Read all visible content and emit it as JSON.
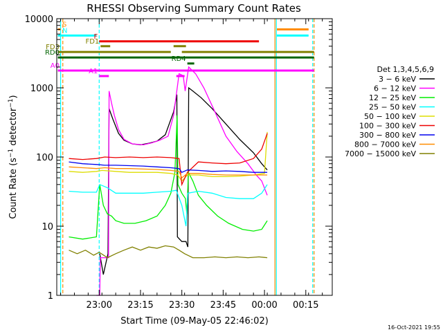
{
  "chart_data": {
    "type": "line",
    "title": "RHESSI Observing Summary Count Rates",
    "xlabel": "Start Time (09-May-05 22:46:02)",
    "ylabel": "Count Rate (s⁻¹ detector⁻¹)",
    "ylabel_main": "Count Rate (s",
    "ylabel_sup1": "−1",
    "ylabel_mid": " detector",
    "ylabel_sup2": "−1",
    "ylabel_end": ")",
    "y_scale": "log",
    "ylim": [
      1,
      10000
    ],
    "xlim": [
      "22:46",
      "00:26"
    ],
    "x_ticks": [
      {
        "t": "23:00",
        "m": 14
      },
      {
        "t": "23:15",
        "m": 29
      },
      {
        "t": "23:30",
        "m": 44
      },
      {
        "t": "23:45",
        "m": 59
      },
      {
        "t": "00:00",
        "m": 74
      },
      {
        "t": "00:15",
        "m": 89
      }
    ],
    "y_ticks": [
      {
        "label": "1",
        "v": 1
      },
      {
        "label": "10",
        "v": 10
      },
      {
        "label": "100",
        "v": 100
      },
      {
        "label": "1000",
        "v": 1000
      },
      {
        "label": "10000",
        "v": 10000
      }
    ],
    "legend": {
      "title": "Det 1,3,4,5,6,9",
      "placement": "right",
      "entries": [
        {
          "label": "3 − 6 keV",
          "color": "#000000"
        },
        {
          "label": "6 − 12 keV",
          "color": "#ff00ff"
        },
        {
          "label": "12 − 25 keV",
          "color": "#00ee00"
        },
        {
          "label": "25 − 50 keV",
          "color": "#00ffff"
        },
        {
          "label": "50 − 100 keV",
          "color": "#dddd00"
        },
        {
          "label": "100 − 300 keV",
          "color": "#ee0000"
        },
        {
          "label": "300 − 800 keV",
          "color": "#0000ee"
        },
        {
          "label": "800 − 7000 keV",
          "color": "#ff8c00"
        },
        {
          "label": "7000 − 15000 keV",
          "color": "#808000"
        }
      ]
    },
    "flag_bars": [
      {
        "label": "S",
        "color": "#ff8c00",
        "y": 7000,
        "segments": [
          [
            -1,
            0
          ],
          [
            78.5,
            90
          ]
        ]
      },
      {
        "label": "N",
        "color": "#00ffff",
        "y": 5700,
        "segments": [
          [
            -1,
            13
          ],
          [
            78.5,
            90
          ]
        ]
      },
      {
        "label": "F",
        "color": "#ee0000",
        "y": 4700,
        "segments": [
          [
            14,
            72
          ]
        ]
      },
      {
        "label": "FD1",
        "color": "#808000",
        "y": 4000,
        "segments": [
          [
            14.5,
            18
          ],
          [
            41,
            45.5
          ]
        ]
      },
      {
        "label": "FD3",
        "color": "#808000",
        "y": 3300,
        "segments": [
          [
            -1,
            40
          ],
          [
            44,
            92
          ]
        ]
      },
      {
        "label": "RD0",
        "color": "#006400",
        "y": 2750,
        "segments": [
          [
            -1,
            92
          ]
        ]
      },
      {
        "label": "RD4",
        "color": "#006400",
        "y": 2250,
        "segments": [
          [
            46,
            48.5
          ]
        ]
      },
      {
        "label": "A0",
        "color": "#ff00ff",
        "y": 1780,
        "segments": [
          [
            -1,
            92
          ]
        ]
      },
      {
        "label": "A1",
        "color": "#ff00ff",
        "y": 1480,
        "segments": [
          [
            14,
            17.5
          ],
          [
            42,
            45
          ]
        ]
      }
    ],
    "vlines": [
      {
        "m": 0.8,
        "color": "#ff8c00",
        "style": "dashed"
      },
      {
        "m": 0,
        "color": "#00ffff",
        "style": "solid"
      },
      {
        "m": 14,
        "color": "#00ffff",
        "style": "dashed"
      },
      {
        "m": 77.8,
        "color": "#ff8c00",
        "style": "solid"
      },
      {
        "m": 78.3,
        "color": "#00ffff",
        "style": "solid"
      },
      {
        "m": 91.5,
        "color": "#00ffff",
        "style": "dashed"
      },
      {
        "m": 92,
        "color": "#ff8c00",
        "style": "dashed"
      }
    ],
    "series": [
      {
        "name": "3 − 6 keV",
        "color": "#000000",
        "points": [
          [
            14.2,
            4
          ],
          [
            15.5,
            2
          ],
          [
            16.5,
            3
          ],
          [
            17.2,
            4
          ],
          [
            17.6,
            500
          ],
          [
            19,
            350
          ],
          [
            21,
            220
          ],
          [
            23,
            175
          ],
          [
            26,
            155
          ],
          [
            29,
            150
          ],
          [
            32,
            158
          ],
          [
            35,
            170
          ],
          [
            38,
            210
          ],
          [
            41,
            450
          ],
          [
            42.2,
            800
          ],
          [
            42.4,
            7
          ],
          [
            44,
            6
          ],
          [
            45.5,
            6
          ],
          [
            46.2,
            5
          ],
          [
            46.5,
            1000
          ],
          [
            48,
            900
          ],
          [
            51,
            720
          ],
          [
            55,
            500
          ],
          [
            60,
            300
          ],
          [
            65,
            180
          ],
          [
            70,
            115
          ],
          [
            73,
            80
          ],
          [
            75,
            65
          ]
        ]
      },
      {
        "name": "6 − 12 keV",
        "color": "#ff00ff",
        "points": [
          [
            13,
            1
          ],
          [
            14.2,
            1
          ],
          [
            14.4,
            3.5
          ],
          [
            16.5,
            3.5
          ],
          [
            17.4,
            3.5
          ],
          [
            17.6,
            900
          ],
          [
            18.5,
            600
          ],
          [
            19.5,
            400
          ],
          [
            21,
            250
          ],
          [
            23,
            180
          ],
          [
            26,
            155
          ],
          [
            30,
            150
          ],
          [
            33,
            160
          ],
          [
            36,
            175
          ],
          [
            39,
            200
          ],
          [
            41,
            400
          ],
          [
            43,
            1600
          ],
          [
            44.5,
            1500
          ],
          [
            45.2,
            900
          ],
          [
            46.5,
            2000
          ],
          [
            49,
            1600
          ],
          [
            52,
            1000
          ],
          [
            56,
            450
          ],
          [
            60,
            200
          ],
          [
            64,
            120
          ],
          [
            68,
            80
          ],
          [
            71,
            55
          ],
          [
            73,
            45
          ],
          [
            75,
            28
          ]
        ]
      },
      {
        "name": "12 − 25 keV",
        "color": "#00ee00",
        "points": [
          [
            3,
            7
          ],
          [
            8,
            6.5
          ],
          [
            13,
            7
          ],
          [
            14.2,
            40
          ],
          [
            15.5,
            20
          ],
          [
            17,
            15
          ],
          [
            18.5,
            14
          ],
          [
            20,
            12
          ],
          [
            23,
            11
          ],
          [
            27,
            11
          ],
          [
            31,
            12
          ],
          [
            35,
            14
          ],
          [
            38,
            20
          ],
          [
            40,
            30
          ],
          [
            41.5,
            60
          ],
          [
            42.3,
            400
          ],
          [
            42.6,
            40
          ],
          [
            44,
            30
          ],
          [
            45.3,
            25
          ],
          [
            45.8,
            15
          ],
          [
            46.4,
            60
          ],
          [
            48,
            45
          ],
          [
            50,
            28
          ],
          [
            53,
            20
          ],
          [
            57,
            14
          ],
          [
            61,
            11
          ],
          [
            66,
            9
          ],
          [
            70,
            8.5
          ],
          [
            73,
            9
          ],
          [
            75,
            12
          ]
        ]
      },
      {
        "name": "25 − 50 keV",
        "color": "#00ffff",
        "points": [
          [
            3,
            32
          ],
          [
            8,
            31
          ],
          [
            13,
            31
          ],
          [
            14.2,
            40
          ],
          [
            17,
            36
          ],
          [
            20,
            30
          ],
          [
            25,
            30
          ],
          [
            30,
            30
          ],
          [
            35,
            31
          ],
          [
            40,
            32
          ],
          [
            42,
            33
          ],
          [
            44,
            20
          ],
          [
            45.5,
            10
          ],
          [
            46.2,
            30
          ],
          [
            50,
            32
          ],
          [
            55,
            30
          ],
          [
            60,
            26
          ],
          [
            65,
            25
          ],
          [
            70,
            25
          ],
          [
            73,
            30
          ],
          [
            75,
            40
          ]
        ]
      },
      {
        "name": "50 − 100 keV",
        "color": "#dddd00",
        "points": [
          [
            3,
            62
          ],
          [
            8,
            60
          ],
          [
            13,
            62
          ],
          [
            15,
            64
          ],
          [
            20,
            62
          ],
          [
            25,
            60
          ],
          [
            30,
            60
          ],
          [
            35,
            60
          ],
          [
            40,
            58
          ],
          [
            42.5,
            55
          ],
          [
            44,
            45
          ],
          [
            46,
            55
          ],
          [
            50,
            55
          ],
          [
            55,
            52
          ],
          [
            60,
            52
          ],
          [
            65,
            53
          ],
          [
            70,
            55
          ],
          [
            74,
            58
          ],
          [
            75,
            230
          ]
        ]
      },
      {
        "name": "100 − 300 keV",
        "color": "#ee0000",
        "points": [
          [
            3,
            95
          ],
          [
            8,
            92
          ],
          [
            13,
            95
          ],
          [
            16,
            100
          ],
          [
            20,
            98
          ],
          [
            25,
            100
          ],
          [
            30,
            98
          ],
          [
            35,
            100
          ],
          [
            40,
            98
          ],
          [
            43,
            95
          ],
          [
            44,
            40
          ],
          [
            46,
            60
          ],
          [
            50,
            85
          ],
          [
            55,
            82
          ],
          [
            60,
            80
          ],
          [
            65,
            82
          ],
          [
            70,
            95
          ],
          [
            73,
            130
          ],
          [
            75,
            220
          ]
        ]
      },
      {
        "name": "300 − 800 keV",
        "color": "#0000ee",
        "points": [
          [
            3,
            85
          ],
          [
            8,
            80
          ],
          [
            13,
            78
          ],
          [
            16,
            76
          ],
          [
            20,
            76
          ],
          [
            25,
            75
          ],
          [
            30,
            74
          ],
          [
            35,
            72
          ],
          [
            40,
            70
          ],
          [
            43,
            68
          ],
          [
            44,
            60
          ],
          [
            46,
            65
          ],
          [
            50,
            64
          ],
          [
            55,
            62
          ],
          [
            60,
            63
          ],
          [
            65,
            62
          ],
          [
            70,
            60
          ],
          [
            75,
            60
          ]
        ]
      },
      {
        "name": "800 − 7000 keV",
        "color": "#ff8c00",
        "points": [
          [
            3,
            72
          ],
          [
            8,
            70
          ],
          [
            13,
            68
          ],
          [
            16,
            70
          ],
          [
            20,
            68
          ],
          [
            25,
            68
          ],
          [
            30,
            67
          ],
          [
            35,
            66
          ],
          [
            40,
            64
          ],
          [
            43,
            62
          ],
          [
            44,
            50
          ],
          [
            46,
            58
          ],
          [
            50,
            58
          ],
          [
            55,
            56
          ],
          [
            60,
            55
          ],
          [
            65,
            55
          ],
          [
            70,
            55
          ],
          [
            75,
            55
          ]
        ]
      },
      {
        "name": "7000 − 15000 keV",
        "color": "#808000",
        "points": [
          [
            3,
            4.5
          ],
          [
            6,
            4
          ],
          [
            9,
            4.5
          ],
          [
            12,
            3.8
          ],
          [
            14,
            4.2
          ],
          [
            17,
            3.5
          ],
          [
            20,
            4
          ],
          [
            23,
            4.5
          ],
          [
            26,
            5
          ],
          [
            29,
            4.5
          ],
          [
            32,
            5
          ],
          [
            35,
            4.8
          ],
          [
            38,
            5.2
          ],
          [
            41,
            5
          ],
          [
            43,
            4.5
          ],
          [
            45,
            4
          ],
          [
            48,
            3.5
          ],
          [
            52,
            3.5
          ],
          [
            56,
            3.6
          ],
          [
            60,
            3.5
          ],
          [
            64,
            3.6
          ],
          [
            68,
            3.5
          ],
          [
            72,
            3.6
          ],
          [
            75,
            3.5
          ]
        ]
      }
    ]
  },
  "footer": {
    "timestamp": "16-Oct-2021 19:55"
  }
}
